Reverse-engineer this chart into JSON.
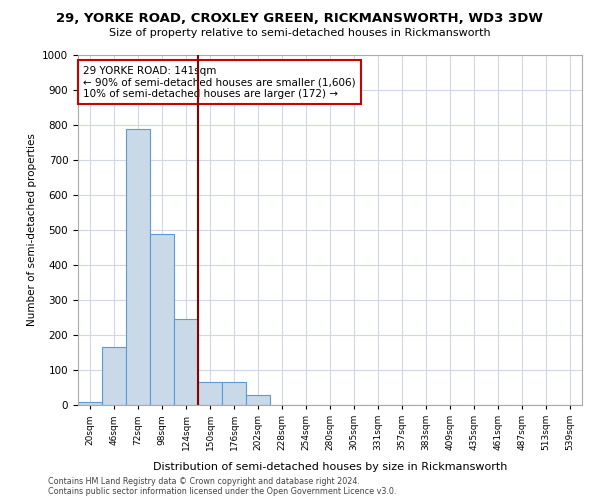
{
  "title1": "29, YORKE ROAD, CROXLEY GREEN, RICKMANSWORTH, WD3 3DW",
  "title2": "Size of property relative to semi-detached houses in Rickmansworth",
  "xlabel": "Distribution of semi-detached houses by size in Rickmansworth",
  "ylabel": "Number of semi-detached properties",
  "footer1": "Contains HM Land Registry data © Crown copyright and database right 2024.",
  "footer2": "Contains public sector information licensed under the Open Government Licence v3.0.",
  "annotation_line1": "29 YORKE ROAD: 141sqm",
  "annotation_line2": "← 90% of semi-detached houses are smaller (1,606)",
  "annotation_line3": "10% of semi-detached houses are larger (172) →",
  "bar_color": "#c9d9e8",
  "bar_edge_color": "#5b9bd5",
  "vline_color": "#8b0000",
  "annotation_box_color": "#ffffff",
  "annotation_box_edge_color": "#cc0000",
  "bins": [
    "20sqm",
    "46sqm",
    "72sqm",
    "98sqm",
    "124sqm",
    "150sqm",
    "176sqm",
    "202sqm",
    "228sqm",
    "254sqm",
    "280sqm",
    "305sqm",
    "331sqm",
    "357sqm",
    "383sqm",
    "409sqm",
    "435sqm",
    "461sqm",
    "487sqm",
    "513sqm",
    "539sqm"
  ],
  "values": [
    10,
    165,
    790,
    490,
    245,
    65,
    65,
    30,
    0,
    0,
    0,
    0,
    0,
    0,
    0,
    0,
    0,
    0,
    0,
    0,
    0
  ],
  "vline_x_index": 4.5,
  "ylim": [
    0,
    1000
  ],
  "yticks": [
    0,
    100,
    200,
    300,
    400,
    500,
    600,
    700,
    800,
    900,
    1000
  ],
  "background_color": "#ffffff",
  "grid_color": "#d0d8e8"
}
